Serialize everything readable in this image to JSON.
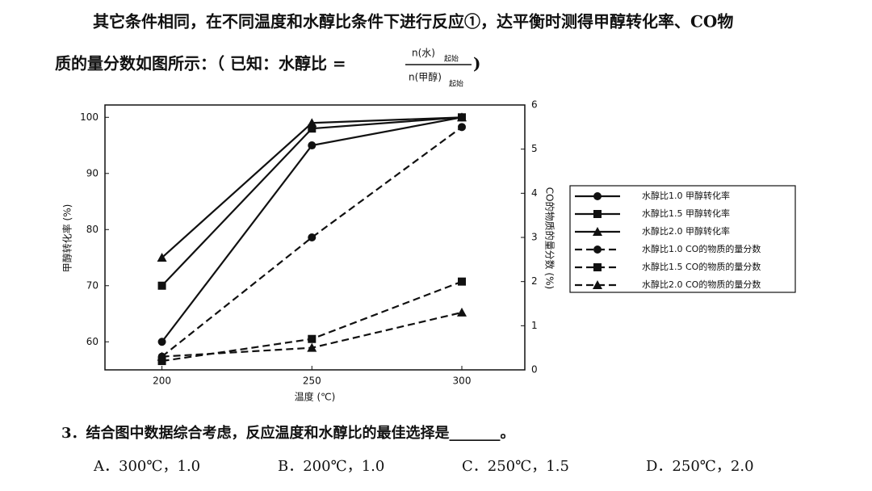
{
  "text": {
    "line1": "其它条件相同，在不同温度和水醇比条件下进行反应①，达平衡时测得甲醇转化率、CO物",
    "line2": "质的量分数如图所示：（ 已知：水醇比 =",
    "numerator": "n(水)",
    "numerator_sub": "起始",
    "denominator": "n(甲醇)",
    "denominator_sub": "起始",
    "close": ")"
  },
  "chart_data": {
    "type": "line",
    "x_label": "温度 (℃)",
    "y_label": "甲醇转化率 (%)",
    "y2_label": "CO的物质的量分数 (%)",
    "x": [
      200,
      250,
      300
    ],
    "xlim": [
      181,
      321
    ],
    "xticks": [
      200,
      250,
      300
    ],
    "ylim": [
      55,
      102.2
    ],
    "yticks": [
      60,
      70,
      80,
      90,
      100
    ],
    "y2lim": [
      0,
      6
    ],
    "y2ticks": [
      0,
      1,
      2,
      3,
      4,
      5,
      6
    ],
    "series": [
      {
        "name": "水醇比1.0 甲醇转化率",
        "color": "#111111",
        "marker": "circle",
        "dashed": false,
        "values": [
          60,
          95,
          100
        ]
      },
      {
        "name": "水醇比1.5 甲醇转化率",
        "color": "#111111",
        "marker": "square",
        "dashed": false,
        "values": [
          70,
          98,
          100
        ]
      },
      {
        "name": "水醇比2.0 甲醇转化率",
        "color": "#111111",
        "marker": "triangle",
        "dashed": false,
        "values": [
          75,
          99,
          100
        ]
      },
      {
        "name": "水醇比1.0 CO的物质的量分数",
        "color": "#111111",
        "marker": "circle",
        "dashed": true,
        "axis": "y2",
        "values": [
          0.3,
          3.0,
          5.5
        ]
      },
      {
        "name": "水醇比1.5 CO的物质的量分数",
        "color": "#111111",
        "marker": "square",
        "dashed": true,
        "axis": "y2",
        "values": [
          0.2,
          0.7,
          2.0
        ]
      },
      {
        "name": "水醇比2.0 CO的物质的量分数",
        "color": "#111111",
        "marker": "triangle",
        "dashed": true,
        "axis": "y2",
        "values": [
          0.3,
          0.5,
          1.3
        ]
      }
    ]
  },
  "question": "3．结合图中数据综合考虑，反应温度和水醇比的最佳选择是_______。",
  "options": [
    "A．300℃，1.0",
    "B．200℃，1.0",
    "C．250℃，1.5",
    "D．250℃，2.0"
  ]
}
